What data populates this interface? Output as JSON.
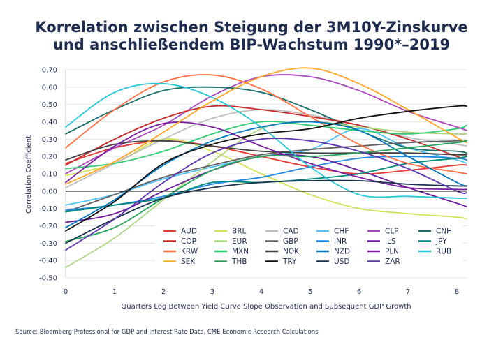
{
  "chart_data": {
    "type": "line",
    "title_lines": [
      "Korrelation zwischen Steigung der 3M10Y-Zinskurve",
      "und anschließendem BIP-Wachstum 1990*–2019"
    ],
    "xlabel": "Quarters Log Between Yield Curve Slope Observation and Subsequent GDP Growth",
    "ylabel": "Correlation Coefficient",
    "source": "Source: Bloomberg Professional for GDP and Interest Rate Data, CME Economic Research Calculations",
    "xlim": [
      0,
      8.2
    ],
    "ylim": [
      -0.5,
      0.7
    ],
    "x_ticks": [
      "0",
      "1",
      "2",
      "3",
      "4",
      "5",
      "6",
      "7",
      "8"
    ],
    "y_ticks": [
      "0.70",
      "0.60",
      "0.50",
      "0.40",
      "0.30",
      "0.20",
      "0.10",
      "0.00",
      "-0.10",
      "-0.20",
      "-0.30",
      "-0.40",
      "-0.50"
    ],
    "grid": "horizontal",
    "legend_position": "bottom-center",
    "x": [
      0,
      1,
      2,
      3,
      4,
      5,
      6,
      7,
      8,
      8.2
    ],
    "series": [
      {
        "name": "AUD",
        "color": "#e53935",
        "values": [
          0.16,
          0.25,
          0.29,
          0.26,
          0.2,
          0.14,
          0.1,
          0.12,
          0.15,
          0.15
        ]
      },
      {
        "name": "BRL",
        "color": "#d4e157",
        "values": [
          0.09,
          0.16,
          0.3,
          0.23,
          0.1,
          -0.02,
          -0.1,
          -0.13,
          -0.15,
          -0.16
        ]
      },
      {
        "name": "CAD",
        "color": "#bdbdbd",
        "values": [
          0.02,
          0.16,
          0.3,
          0.42,
          0.47,
          0.44,
          0.38,
          0.31,
          0.27,
          0.26
        ]
      },
      {
        "name": "CHF",
        "color": "#4fc3f7",
        "values": [
          -0.08,
          -0.02,
          0.07,
          0.14,
          0.2,
          0.24,
          0.36,
          0.25,
          0.18,
          0.16
        ]
      },
      {
        "name": "CLP",
        "color": "#ab47bc",
        "values": [
          0.1,
          0.25,
          0.38,
          0.55,
          0.66,
          0.66,
          0.58,
          0.46,
          0.37,
          0.35
        ]
      },
      {
        "name": "CNH",
        "color": "#1b6e6a",
        "values": [
          0.33,
          0.47,
          0.58,
          0.6,
          0.57,
          0.47,
          0.35,
          0.25,
          0.23,
          0.22
        ]
      },
      {
        "name": "COP",
        "color": "#c62828",
        "values": [
          0.15,
          0.3,
          0.42,
          0.49,
          0.47,
          0.43,
          0.38,
          0.3,
          0.2,
          0.18
        ]
      },
      {
        "name": "EUR",
        "color": "#aed581",
        "values": [
          -0.44,
          -0.27,
          -0.05,
          0.17,
          0.36,
          0.4,
          0.37,
          0.34,
          0.33,
          0.33
        ]
      },
      {
        "name": "GBP",
        "color": "#616161",
        "values": [
          -0.12,
          -0.02,
          0.08,
          0.15,
          0.21,
          0.24,
          0.26,
          0.28,
          0.29,
          0.29
        ]
      },
      {
        "name": "INR",
        "color": "#1e88e5",
        "values": [
          -0.11,
          -0.08,
          -0.03,
          0.04,
          0.08,
          0.14,
          0.19,
          0.2,
          0.19,
          0.18
        ]
      },
      {
        "name": "ILS",
        "color": "#6a1b9a",
        "values": [
          -0.18,
          -0.13,
          0.0,
          0.12,
          0.2,
          0.2,
          0.12,
          0.02,
          -0.07,
          -0.09
        ]
      },
      {
        "name": "JPY",
        "color": "#00897b",
        "values": [
          -0.12,
          -0.08,
          -0.04,
          0.05,
          0.05,
          0.07,
          0.1,
          0.16,
          0.19,
          0.2
        ]
      },
      {
        "name": "KRW",
        "color": "#ff7043",
        "values": [
          0.25,
          0.47,
          0.63,
          0.67,
          0.59,
          0.43,
          0.27,
          0.16,
          0.11,
          0.1
        ]
      },
      {
        "name": "MXN",
        "color": "#2ecc71",
        "values": [
          0.13,
          0.16,
          0.23,
          0.33,
          0.4,
          0.38,
          0.35,
          0.33,
          0.36,
          0.38
        ]
      },
      {
        "name": "NOK",
        "color": "#424242",
        "values": [
          0.18,
          0.27,
          0.29,
          0.26,
          0.23,
          0.22,
          0.22,
          0.22,
          0.21,
          0.21
        ]
      },
      {
        "name": "NZD",
        "color": "#0277bd",
        "values": [
          -0.21,
          -0.05,
          0.15,
          0.29,
          0.37,
          0.4,
          0.35,
          0.2,
          0.05,
          0.03
        ]
      },
      {
        "name": "PLN",
        "color": "#7b1fa2",
        "values": [
          0.05,
          0.26,
          0.39,
          0.37,
          0.26,
          0.16,
          0.08,
          0.02,
          0.01,
          0.01
        ]
      },
      {
        "name": "RUB",
        "color": "#26c6da",
        "values": [
          0.37,
          0.57,
          0.62,
          0.54,
          0.37,
          0.14,
          -0.02,
          -0.03,
          -0.04,
          -0.04
        ]
      },
      {
        "name": "SEK",
        "color": "#ffa726",
        "values": [
          0.04,
          0.17,
          0.34,
          0.52,
          0.66,
          0.71,
          0.62,
          0.47,
          0.31,
          0.28
        ]
      },
      {
        "name": "THB",
        "color": "#26a65b",
        "values": [
          -0.29,
          -0.21,
          -0.04,
          0.12,
          0.2,
          0.2,
          0.22,
          0.25,
          0.28,
          0.29
        ]
      },
      {
        "name": "TRY",
        "color": "#111111",
        "values": [
          -0.23,
          -0.06,
          0.16,
          0.27,
          0.33,
          0.36,
          0.42,
          0.46,
          0.49,
          0.49
        ]
      },
      {
        "name": "USD",
        "color": "#17324d",
        "values": [
          -0.3,
          -0.16,
          -0.04,
          0.02,
          0.05,
          0.06,
          0.06,
          0.04,
          0.03,
          0.03
        ]
      },
      {
        "name": "ZAR",
        "color": "#5e35b1",
        "values": [
          -0.34,
          -0.16,
          0.05,
          0.22,
          0.3,
          0.29,
          0.23,
          0.13,
          0.0,
          -0.01
        ]
      }
    ]
  }
}
